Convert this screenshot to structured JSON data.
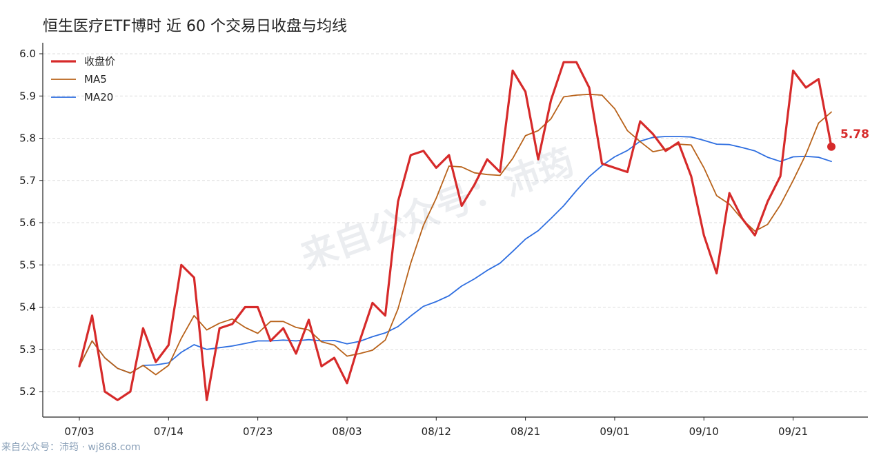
{
  "colors": {
    "close": "#d62a2a",
    "ma5": "#b8621a",
    "ma20": "#2e6ee0",
    "axis": "#222222",
    "grid": "#dddddd",
    "source": "#8aa0b8"
  },
  "watermark": "来自公众号：沛筠",
  "source_note": "来自公众号：沛筠 · wj868.com",
  "chart_data": {
    "type": "line",
    "title": "恒生医疗ETF博时 近 60 个交易日收盘与均线",
    "xlabel": "",
    "ylabel": "",
    "ylim": [
      5.15,
      6.02
    ],
    "yticks": [
      "5.2",
      "5.3",
      "5.4",
      "5.5",
      "5.6",
      "5.7",
      "5.8",
      "5.9",
      "6.0"
    ],
    "xticks": [
      {
        "label": "07/03",
        "index": 0
      },
      {
        "label": "07/14",
        "index": 7
      },
      {
        "label": "07/23",
        "index": 14
      },
      {
        "label": "08/03",
        "index": 21
      },
      {
        "label": "08/12",
        "index": 28
      },
      {
        "label": "08/21",
        "index": 35
      },
      {
        "label": "09/01",
        "index": 42
      },
      {
        "label": "09/10",
        "index": 49
      },
      {
        "label": "09/21",
        "index": 56
      }
    ],
    "grid": true,
    "legend_position": "top-left",
    "series": [
      {
        "name": "收盘价",
        "key": "close",
        "values": [
          5.26,
          5.38,
          5.2,
          5.18,
          5.2,
          5.35,
          5.27,
          5.31,
          5.5,
          5.47,
          5.18,
          5.35,
          5.36,
          5.4,
          5.4,
          5.32,
          5.35,
          5.29,
          5.37,
          5.26,
          5.28,
          5.22,
          5.32,
          5.41,
          5.38,
          5.65,
          5.76,
          5.77,
          5.73,
          5.76,
          5.64,
          5.69,
          5.75,
          5.72,
          5.96,
          5.91,
          5.75,
          5.89,
          5.98,
          5.98,
          5.92,
          5.74,
          5.73,
          5.72,
          5.84,
          5.81,
          5.77,
          5.79,
          5.71,
          5.57,
          5.48,
          5.67,
          5.61,
          5.57,
          5.65,
          5.71,
          5.96,
          5.92,
          5.94,
          5.78
        ]
      },
      {
        "name": "MA5",
        "key": "ma5",
        "values": [
          5.26,
          5.32,
          5.28,
          5.255,
          5.244,
          5.262,
          5.24,
          5.262,
          5.326,
          5.38,
          5.346,
          5.362,
          5.372,
          5.352,
          5.338,
          5.366,
          5.366,
          5.352,
          5.346,
          5.318,
          5.31,
          5.284,
          5.29,
          5.298,
          5.322,
          5.396,
          5.504,
          5.594,
          5.658,
          5.734,
          5.732,
          5.718,
          5.714,
          5.712,
          5.752,
          5.806,
          5.818,
          5.846,
          5.898,
          5.902,
          5.904,
          5.902,
          5.87,
          5.818,
          5.792,
          5.768,
          5.774,
          5.786,
          5.784,
          5.73,
          5.664,
          5.644,
          5.608,
          5.58,
          5.596,
          5.642,
          5.7,
          5.762,
          5.836,
          5.862
        ]
      },
      {
        "name": "MA20",
        "key": "ma20",
        "values": [
          5.26,
          5.32,
          5.28,
          5.255,
          5.244,
          5.262,
          5.263,
          5.268,
          5.293,
          5.311,
          5.3,
          5.304,
          5.308,
          5.314,
          5.32,
          5.32,
          5.322,
          5.32,
          5.323,
          5.32,
          5.321,
          5.313,
          5.319,
          5.33,
          5.339,
          5.354,
          5.379,
          5.402,
          5.413,
          5.427,
          5.45,
          5.467,
          5.487,
          5.504,
          5.532,
          5.561,
          5.581,
          5.61,
          5.64,
          5.676,
          5.709,
          5.735,
          5.756,
          5.771,
          5.793,
          5.802,
          5.804,
          5.804,
          5.803,
          5.795,
          5.786,
          5.785,
          5.778,
          5.77,
          5.755,
          5.745,
          5.756,
          5.757,
          5.755,
          5.745
        ]
      }
    ],
    "last_value_label": "5.78"
  }
}
